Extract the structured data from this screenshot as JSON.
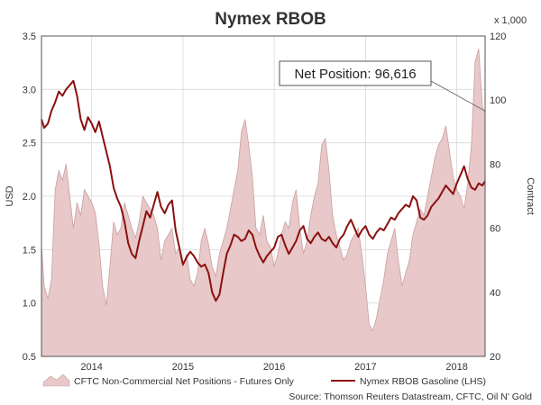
{
  "chart_data": {
    "type": "line",
    "title": "Nymex RBOB",
    "left_axis": {
      "label": "USD",
      "ylim": [
        0.5,
        3.5
      ],
      "ticks": [
        "0.5",
        "1.0",
        "1.5",
        "2.0",
        "2.5",
        "3.0",
        "3.5"
      ]
    },
    "right_axis": {
      "label": "Contract",
      "unit_label": "x 1,000",
      "ylim": [
        20,
        120
      ],
      "ticks": [
        "20",
        "40",
        "60",
        "80",
        "100",
        "120"
      ]
    },
    "x_axis": {
      "range": [
        2013.45,
        2018.31
      ],
      "tick_labels": [
        "2014",
        "2015",
        "2016",
        "2017",
        "2018"
      ],
      "tick_values": [
        2014.0,
        2015.0,
        2016.0,
        2017.0,
        2018.0
      ]
    },
    "grid": true,
    "legend_position": "bottom",
    "series": [
      {
        "name": "CFTC Non-Commercial Net Positions - Futures Only",
        "kind": "area",
        "axis": "right",
        "color": "#e8c8c8",
        "stroke": "#c9a0a0",
        "x": [
          2013.45,
          2013.48,
          2013.52,
          2013.56,
          2013.6,
          2013.64,
          2013.68,
          2013.72,
          2013.76,
          2013.8,
          2013.84,
          2013.88,
          2013.92,
          2013.96,
          2014.0,
          2014.04,
          2014.08,
          2014.12,
          2014.16,
          2014.2,
          2014.24,
          2014.28,
          2014.32,
          2014.36,
          2014.4,
          2014.44,
          2014.48,
          2014.52,
          2014.56,
          2014.6,
          2014.64,
          2014.68,
          2014.72,
          2014.76,
          2014.8,
          2014.84,
          2014.88,
          2014.92,
          2014.96,
          2015.0,
          2015.04,
          2015.08,
          2015.12,
          2015.16,
          2015.2,
          2015.24,
          2015.28,
          2015.32,
          2015.36,
          2015.4,
          2015.44,
          2015.48,
          2015.52,
          2015.56,
          2015.6,
          2015.64,
          2015.68,
          2015.72,
          2015.76,
          2015.8,
          2015.84,
          2015.88,
          2015.92,
          2015.96,
          2016.0,
          2016.04,
          2016.08,
          2016.12,
          2016.16,
          2016.2,
          2016.24,
          2016.28,
          2016.32,
          2016.36,
          2016.4,
          2016.44,
          2016.48,
          2016.52,
          2016.56,
          2016.6,
          2016.64,
          2016.68,
          2016.72,
          2016.76,
          2016.8,
          2016.84,
          2016.88,
          2016.92,
          2016.96,
          2017.0,
          2017.04,
          2017.08,
          2017.12,
          2017.16,
          2017.2,
          2017.24,
          2017.28,
          2017.32,
          2017.36,
          2017.4,
          2017.44,
          2017.48,
          2017.52,
          2017.56,
          2017.6,
          2017.64,
          2017.68,
          2017.72,
          2017.76,
          2017.8,
          2017.84,
          2017.88,
          2017.92,
          2017.96,
          2018.0,
          2018.04,
          2018.08,
          2018.12,
          2018.16,
          2018.2,
          2018.24,
          2018.28,
          2018.31
        ],
        "values": [
          55,
          42,
          38,
          44,
          72,
          78,
          75,
          80,
          70,
          60,
          68,
          64,
          72,
          70,
          68,
          65,
          55,
          42,
          36,
          48,
          62,
          58,
          60,
          68,
          64,
          60,
          57,
          62,
          70,
          68,
          66,
          64,
          60,
          50,
          56,
          58,
          60,
          52,
          54,
          48,
          52,
          44,
          42,
          46,
          56,
          60,
          55,
          48,
          45,
          52,
          56,
          60,
          66,
          72,
          78,
          90,
          94,
          86,
          76,
          60,
          58,
          64,
          56,
          54,
          48,
          52,
          58,
          62,
          60,
          68,
          72,
          60,
          52,
          56,
          64,
          70,
          74,
          86,
          88,
          78,
          64,
          58,
          54,
          50,
          52,
          56,
          58,
          60,
          52,
          42,
          30,
          28,
          32,
          38,
          44,
          52,
          56,
          60,
          50,
          42,
          46,
          50,
          58,
          62,
          66,
          64,
          70,
          76,
          82,
          86,
          88,
          92,
          84,
          76,
          72,
          70,
          66,
          74,
          86,
          112,
          116,
          98,
          96
        ]
      },
      {
        "name": "Nymex RBOB Gasoline (LHS)",
        "kind": "line",
        "axis": "left",
        "color": "#8b1010",
        "x": [
          2013.45,
          2013.48,
          2013.52,
          2013.56,
          2013.6,
          2013.64,
          2013.68,
          2013.72,
          2013.76,
          2013.8,
          2013.84,
          2013.88,
          2013.92,
          2013.96,
          2014.0,
          2014.04,
          2014.08,
          2014.12,
          2014.16,
          2014.2,
          2014.24,
          2014.28,
          2014.32,
          2014.36,
          2014.4,
          2014.44,
          2014.48,
          2014.52,
          2014.56,
          2014.6,
          2014.64,
          2014.68,
          2014.72,
          2014.76,
          2014.8,
          2014.84,
          2014.88,
          2014.92,
          2014.96,
          2015.0,
          2015.04,
          2015.08,
          2015.12,
          2015.16,
          2015.2,
          2015.24,
          2015.28,
          2015.32,
          2015.36,
          2015.4,
          2015.44,
          2015.48,
          2015.52,
          2015.56,
          2015.6,
          2015.64,
          2015.68,
          2015.72,
          2015.76,
          2015.8,
          2015.84,
          2015.88,
          2015.92,
          2015.96,
          2016.0,
          2016.04,
          2016.08,
          2016.12,
          2016.16,
          2016.2,
          2016.24,
          2016.28,
          2016.32,
          2016.36,
          2016.4,
          2016.44,
          2016.48,
          2016.52,
          2016.56,
          2016.6,
          2016.64,
          2016.68,
          2016.72,
          2016.76,
          2016.8,
          2016.84,
          2016.88,
          2016.92,
          2016.96,
          2017.0,
          2017.04,
          2017.08,
          2017.12,
          2017.16,
          2017.2,
          2017.24,
          2017.28,
          2017.32,
          2017.36,
          2017.4,
          2017.44,
          2017.48,
          2017.52,
          2017.56,
          2017.6,
          2017.64,
          2017.68,
          2017.72,
          2017.76,
          2017.8,
          2017.84,
          2017.88,
          2017.92,
          2017.96,
          2018.0,
          2018.04,
          2018.08,
          2018.12,
          2018.16,
          2018.2,
          2018.24,
          2018.28,
          2018.31
        ],
        "values": [
          2.72,
          2.64,
          2.68,
          2.8,
          2.88,
          2.98,
          2.94,
          3.0,
          3.04,
          3.08,
          2.94,
          2.72,
          2.62,
          2.74,
          2.68,
          2.6,
          2.7,
          2.56,
          2.42,
          2.28,
          2.08,
          1.98,
          1.9,
          1.76,
          1.56,
          1.46,
          1.42,
          1.58,
          1.72,
          1.86,
          1.8,
          1.92,
          2.04,
          1.9,
          1.84,
          1.92,
          1.96,
          1.68,
          1.52,
          1.36,
          1.43,
          1.48,
          1.44,
          1.38,
          1.34,
          1.36,
          1.28,
          1.1,
          1.02,
          1.08,
          1.28,
          1.46,
          1.54,
          1.64,
          1.62,
          1.58,
          1.6,
          1.68,
          1.64,
          1.52,
          1.44,
          1.38,
          1.44,
          1.48,
          1.52,
          1.62,
          1.64,
          1.54,
          1.46,
          1.52,
          1.58,
          1.68,
          1.72,
          1.6,
          1.56,
          1.62,
          1.66,
          1.6,
          1.58,
          1.62,
          1.56,
          1.52,
          1.6,
          1.64,
          1.72,
          1.78,
          1.7,
          1.62,
          1.68,
          1.72,
          1.64,
          1.6,
          1.66,
          1.7,
          1.68,
          1.74,
          1.8,
          1.78,
          1.84,
          1.88,
          1.92,
          1.9,
          2.0,
          1.96,
          1.8,
          1.78,
          1.82,
          1.9,
          1.94,
          1.98,
          2.04,
          2.1,
          2.06,
          2.02,
          2.12,
          2.2,
          2.28,
          2.16,
          2.08,
          2.06,
          2.12,
          2.1,
          2.14
        ]
      }
    ],
    "annotation": {
      "text": "Net Position: 96,616",
      "value_x": 2018.31,
      "value_right": 96.6
    },
    "source": "Source: Thomson Reuters Datastream, CFTC, Oil N' Gold"
  }
}
